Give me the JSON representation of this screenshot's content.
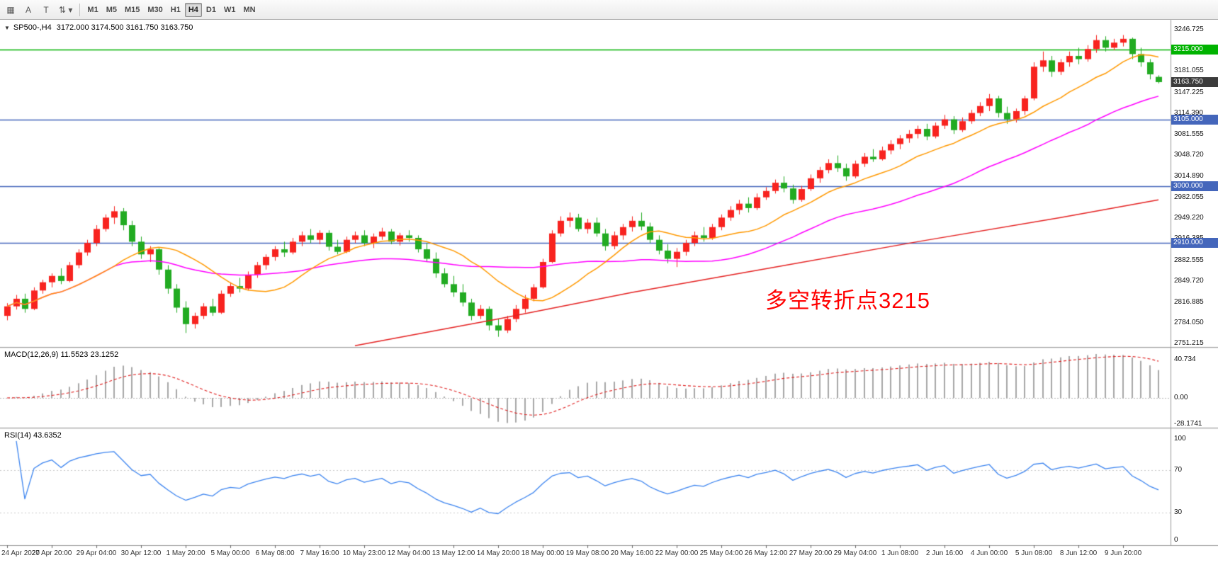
{
  "toolbar": {
    "left_buttons": [
      {
        "name": "charts-grid-icon",
        "glyph": "▦"
      },
      {
        "name": "annotate-letter-icon",
        "glyph": "A"
      },
      {
        "name": "text-tool-icon",
        "glyph": "T"
      },
      {
        "name": "indicators-dropdown-icon",
        "glyph": "⇅ ▾"
      }
    ],
    "timeframes": [
      "M1",
      "M5",
      "M15",
      "M30",
      "H1",
      "H4",
      "D1",
      "W1",
      "MN"
    ],
    "active_timeframe": "H4"
  },
  "icons": {
    "collapse": "▼"
  },
  "chart": {
    "title": "SP500-,H4",
    "ohlc": "3172.000 3174.500 3161.750 3163.750"
  },
  "indicators": {
    "macd": {
      "label": "MACD(12,26,9) 11.5523 23.1252",
      "axis": [
        "40.734",
        "0.00",
        "-28.1741"
      ]
    },
    "rsi": {
      "label": "RSI(14) 43.6352",
      "axis": [
        "100",
        "70",
        "30",
        "0"
      ]
    }
  },
  "annotation": {
    "text": "多空转折点3215",
    "color": "#ff0000"
  },
  "price_axis": {
    "labels": [
      "3246.725",
      "3181.055",
      "3147.225",
      "3114.390",
      "3081.555",
      "3048.720",
      "3014.890",
      "2982.055",
      "2949.220",
      "2916.385",
      "2882.555",
      "2849.720",
      "2816.885",
      "2784.050",
      "2751.215"
    ]
  },
  "levels": [
    {
      "label": "3215.000",
      "price": 3215.0,
      "color": "#00b300"
    },
    {
      "label": "3105.000",
      "price": 3105.0,
      "color": "#4466bb"
    },
    {
      "label": "3000.000",
      "price": 3000.0,
      "color": "#4466bb"
    },
    {
      "label": "2910.000",
      "price": 2910.0,
      "color": "#4466bb"
    }
  ],
  "current_price": {
    "label": "3163.750",
    "value": 3163.75,
    "bg": "#3c3c3c"
  },
  "time_axis": {
    "labels": [
      "24 Apr 2020",
      "27 Apr 20:00",
      "29 Apr 04:00",
      "30 Apr 12:00",
      "1 May 20:00",
      "5 May 00:00",
      "6 May 08:00",
      "7 May 16:00",
      "10 May 23:00",
      "12 May 04:00",
      "13 May 12:00",
      "14 May 20:00",
      "18 May 00:00",
      "19 May 08:00",
      "20 May 16:00",
      "22 May 00:00",
      "25 May 04:00",
      "26 May 12:00",
      "27 May 20:00",
      "29 May 04:00",
      "1 Jun 08:00",
      "2 Jun 16:00",
      "4 Jun 00:00",
      "5 Jun 08:00",
      "8 Jun 12:00",
      "9 Jun 20:00"
    ]
  },
  "chart_data": {
    "type": "candlestick",
    "symbol": "SP500-",
    "timeframe": "H4",
    "price_range": [
      2751.215,
      3246.725
    ],
    "colors": {
      "up": "#f8231f",
      "down": "#22ab22",
      "ma_fast": "#ff9900",
      "ma_mid": "#ff00ff",
      "ma_slow": "#e52222",
      "macd_hist": "#a8a8a8",
      "macd_signal": "#e02020",
      "rsi": "#3d85f0"
    },
    "ma_periods": {
      "fast": 13,
      "mid": 34
    },
    "red_ma_anchors": [
      [
        39,
        2748
      ],
      [
        55,
        2790
      ],
      [
        70,
        2832
      ],
      [
        86,
        2872
      ],
      [
        102,
        2912
      ],
      [
        118,
        2950
      ],
      [
        129,
        2978
      ]
    ],
    "candles": [
      [
        2795,
        2815,
        2788,
        2810
      ],
      [
        2810,
        2828,
        2805,
        2822
      ],
      [
        2822,
        2830,
        2800,
        2806
      ],
      [
        2806,
        2840,
        2804,
        2835
      ],
      [
        2835,
        2852,
        2830,
        2848
      ],
      [
        2848,
        2862,
        2840,
        2858
      ],
      [
        2858,
        2870,
        2845,
        2850
      ],
      [
        2850,
        2880,
        2848,
        2875
      ],
      [
        2875,
        2900,
        2870,
        2895
      ],
      [
        2895,
        2915,
        2890,
        2910
      ],
      [
        2910,
        2938,
        2905,
        2932
      ],
      [
        2932,
        2955,
        2928,
        2950
      ],
      [
        2950,
        2968,
        2940,
        2960
      ],
      [
        2960,
        2965,
        2930,
        2938
      ],
      [
        2938,
        2945,
        2905,
        2912
      ],
      [
        2912,
        2920,
        2885,
        2892
      ],
      [
        2892,
        2905,
        2880,
        2900
      ],
      [
        2900,
        2902,
        2860,
        2868
      ],
      [
        2868,
        2875,
        2830,
        2838
      ],
      [
        2838,
        2845,
        2800,
        2808
      ],
      [
        2808,
        2818,
        2768,
        2782
      ],
      [
        2782,
        2800,
        2775,
        2795
      ],
      [
        2795,
        2815,
        2790,
        2810
      ],
      [
        2810,
        2822,
        2795,
        2800
      ],
      [
        2800,
        2835,
        2798,
        2830
      ],
      [
        2830,
        2848,
        2825,
        2842
      ],
      [
        2842,
        2855,
        2832,
        2838
      ],
      [
        2838,
        2865,
        2835,
        2860
      ],
      [
        2860,
        2880,
        2855,
        2875
      ],
      [
        2875,
        2892,
        2868,
        2888
      ],
      [
        2888,
        2905,
        2882,
        2900
      ],
      [
        2900,
        2912,
        2888,
        2895
      ],
      [
        2895,
        2918,
        2892,
        2912
      ],
      [
        2912,
        2928,
        2905,
        2922
      ],
      [
        2922,
        2932,
        2910,
        2915
      ],
      [
        2915,
        2930,
        2908,
        2926
      ],
      [
        2926,
        2930,
        2898,
        2904
      ],
      [
        2904,
        2915,
        2892,
        2896
      ],
      [
        2896,
        2920,
        2894,
        2915
      ],
      [
        2915,
        2928,
        2910,
        2922
      ],
      [
        2922,
        2930,
        2905,
        2910
      ],
      [
        2910,
        2925,
        2902,
        2920
      ],
      [
        2920,
        2934,
        2915,
        2928
      ],
      [
        2928,
        2932,
        2908,
        2912
      ],
      [
        2912,
        2926,
        2906,
        2922
      ],
      [
        2922,
        2930,
        2912,
        2918
      ],
      [
        2918,
        2922,
        2895,
        2900
      ],
      [
        2900,
        2910,
        2880,
        2885
      ],
      [
        2885,
        2895,
        2855,
        2862
      ],
      [
        2862,
        2870,
        2840,
        2845
      ],
      [
        2845,
        2858,
        2825,
        2832
      ],
      [
        2832,
        2845,
        2810,
        2816
      ],
      [
        2816,
        2822,
        2788,
        2795
      ],
      [
        2795,
        2812,
        2790,
        2806
      ],
      [
        2806,
        2810,
        2772,
        2780
      ],
      [
        2780,
        2790,
        2762,
        2772
      ],
      [
        2772,
        2795,
        2768,
        2790
      ],
      [
        2790,
        2812,
        2785,
        2806
      ],
      [
        2806,
        2828,
        2800,
        2822
      ],
      [
        2822,
        2845,
        2818,
        2840
      ],
      [
        2840,
        2885,
        2838,
        2880
      ],
      [
        2880,
        2930,
        2878,
        2925
      ],
      [
        2925,
        2952,
        2920,
        2945
      ],
      [
        2945,
        2958,
        2935,
        2950
      ],
      [
        2950,
        2956,
        2928,
        2932
      ],
      [
        2932,
        2948,
        2925,
        2942
      ],
      [
        2942,
        2950,
        2920,
        2925
      ],
      [
        2925,
        2932,
        2898,
        2905
      ],
      [
        2905,
        2928,
        2900,
        2922
      ],
      [
        2922,
        2940,
        2915,
        2935
      ],
      [
        2935,
        2952,
        2928,
        2945
      ],
      [
        2945,
        2958,
        2930,
        2936
      ],
      [
        2936,
        2942,
        2910,
        2915
      ],
      [
        2915,
        2922,
        2892,
        2898
      ],
      [
        2898,
        2908,
        2878,
        2885
      ],
      [
        2885,
        2902,
        2872,
        2896
      ],
      [
        2896,
        2915,
        2890,
        2910
      ],
      [
        2910,
        2928,
        2905,
        2922
      ],
      [
        2922,
        2935,
        2912,
        2918
      ],
      [
        2918,
        2940,
        2915,
        2935
      ],
      [
        2935,
        2955,
        2930,
        2950
      ],
      [
        2950,
        2968,
        2945,
        2962
      ],
      [
        2962,
        2978,
        2955,
        2972
      ],
      [
        2972,
        2982,
        2958,
        2965
      ],
      [
        2965,
        2988,
        2962,
        2982
      ],
      [
        2982,
        2998,
        2978,
        2992
      ],
      [
        2992,
        3010,
        2988,
        3005
      ],
      [
        3005,
        3015,
        2990,
        2996
      ],
      [
        2996,
        3002,
        2972,
        2978
      ],
      [
        2978,
        3000,
        2975,
        2995
      ],
      [
        2995,
        3018,
        2992,
        3012
      ],
      [
        3012,
        3030,
        3005,
        3025
      ],
      [
        3025,
        3042,
        3020,
        3036
      ],
      [
        3036,
        3048,
        3022,
        3028
      ],
      [
        3028,
        3035,
        3008,
        3015
      ],
      [
        3015,
        3040,
        3012,
        3035
      ],
      [
        3035,
        3052,
        3030,
        3046
      ],
      [
        3046,
        3058,
        3038,
        3042
      ],
      [
        3042,
        3062,
        3040,
        3056
      ],
      [
        3056,
        3072,
        3050,
        3066
      ],
      [
        3066,
        3080,
        3058,
        3075
      ],
      [
        3075,
        3088,
        3068,
        3082
      ],
      [
        3082,
        3095,
        3075,
        3090
      ],
      [
        3090,
        3098,
        3072,
        3078
      ],
      [
        3078,
        3100,
        3075,
        3095
      ],
      [
        3095,
        3112,
        3090,
        3105
      ],
      [
        3105,
        3110,
        3082,
        3088
      ],
      [
        3088,
        3108,
        3085,
        3102
      ],
      [
        3102,
        3120,
        3098,
        3115
      ],
      [
        3115,
        3132,
        3110,
        3126
      ],
      [
        3126,
        3145,
        3118,
        3138
      ],
      [
        3138,
        3142,
        3108,
        3115
      ],
      [
        3115,
        3125,
        3098,
        3105
      ],
      [
        3105,
        3122,
        3100,
        3118
      ],
      [
        3118,
        3142,
        3112,
        3138
      ],
      [
        3138,
        3195,
        3135,
        3188
      ],
      [
        3188,
        3212,
        3180,
        3198
      ],
      [
        3198,
        3205,
        3172,
        3180
      ],
      [
        3180,
        3200,
        3175,
        3195
      ],
      [
        3195,
        3212,
        3188,
        3205
      ],
      [
        3205,
        3218,
        3192,
        3200
      ],
      [
        3200,
        3222,
        3196,
        3216
      ],
      [
        3216,
        3238,
        3210,
        3230
      ],
      [
        3230,
        3236,
        3212,
        3218
      ],
      [
        3218,
        3232,
        3214,
        3226
      ],
      [
        3226,
        3238,
        3220,
        3232
      ],
      [
        3232,
        3234,
        3200,
        3208
      ],
      [
        3208,
        3218,
        3188,
        3195
      ],
      [
        3195,
        3200,
        3168,
        3176
      ],
      [
        3172,
        3174.5,
        3161.75,
        3163.75
      ]
    ]
  }
}
